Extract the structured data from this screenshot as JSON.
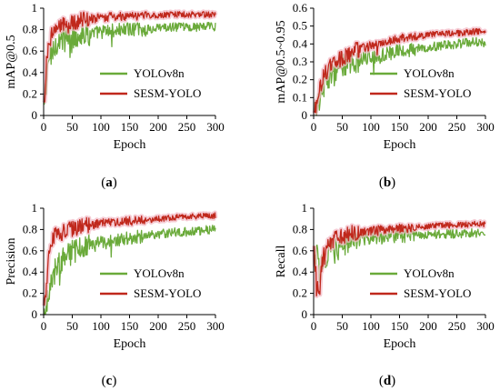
{
  "colors": {
    "yolov8n": "#6aaa3a",
    "sesm": "#c0281c",
    "sesm_glow": "#f2b8c4"
  },
  "chart_data": [
    {
      "type": "line",
      "panel": "a",
      "caption_label": "a",
      "xlabel": "Epoch",
      "ylabel": "mAP@0.5",
      "xlim": [
        0,
        300
      ],
      "ylim": [
        0,
        1
      ],
      "xticks": [
        "0",
        "50",
        "100",
        "150",
        "200",
        "250",
        "300"
      ],
      "yticks": [
        "0",
        "0.2",
        "0.4",
        "0.6",
        "0.8",
        "1"
      ],
      "legend_position": "center-right",
      "series": [
        {
          "name": "YOLOv8n",
          "x": [
            0,
            5,
            10,
            15,
            20,
            30,
            40,
            50,
            60,
            70,
            80,
            100,
            120,
            150,
            180,
            200,
            220,
            250,
            280,
            300
          ],
          "y": [
            0,
            0.35,
            0.55,
            0.6,
            0.66,
            0.7,
            0.72,
            0.73,
            0.75,
            0.77,
            0.76,
            0.78,
            0.79,
            0.8,
            0.8,
            0.81,
            0.82,
            0.82,
            0.83,
            0.83
          ]
        },
        {
          "name": "SESM-YOLO",
          "x": [
            0,
            5,
            10,
            15,
            20,
            30,
            40,
            50,
            60,
            70,
            80,
            100,
            120,
            150,
            180,
            200,
            220,
            250,
            280,
            300
          ],
          "y": [
            0,
            0.5,
            0.7,
            0.77,
            0.8,
            0.83,
            0.85,
            0.87,
            0.88,
            0.89,
            0.9,
            0.91,
            0.92,
            0.93,
            0.93,
            0.93,
            0.94,
            0.94,
            0.94,
            0.94
          ]
        }
      ]
    },
    {
      "type": "line",
      "panel": "b",
      "caption_label": "b",
      "xlabel": "Epoch",
      "ylabel": "mAP@0.5~0.95",
      "xlim": [
        0,
        300
      ],
      "ylim": [
        0,
        0.6
      ],
      "xticks": [
        "0",
        "50",
        "100",
        "150",
        "200",
        "250",
        "300"
      ],
      "yticks": [
        "0",
        "0.1",
        "0.2",
        "0.3",
        "0.4",
        "0.5",
        "0.6"
      ],
      "legend_position": "center-right",
      "series": [
        {
          "name": "YOLOv8n",
          "x": [
            0,
            5,
            10,
            15,
            20,
            30,
            40,
            50,
            60,
            70,
            80,
            100,
            120,
            150,
            180,
            200,
            220,
            250,
            280,
            300
          ],
          "y": [
            0,
            0.05,
            0.1,
            0.15,
            0.18,
            0.22,
            0.25,
            0.27,
            0.29,
            0.3,
            0.31,
            0.33,
            0.34,
            0.36,
            0.37,
            0.38,
            0.39,
            0.4,
            0.41,
            0.41
          ]
        },
        {
          "name": "SESM-YOLO",
          "x": [
            0,
            5,
            10,
            15,
            20,
            30,
            40,
            50,
            60,
            70,
            80,
            100,
            120,
            150,
            180,
            200,
            220,
            250,
            280,
            300
          ],
          "y": [
            0,
            0.07,
            0.15,
            0.2,
            0.24,
            0.28,
            0.3,
            0.32,
            0.34,
            0.36,
            0.37,
            0.39,
            0.41,
            0.43,
            0.44,
            0.45,
            0.46,
            0.46,
            0.47,
            0.47
          ]
        }
      ]
    },
    {
      "type": "line",
      "panel": "c",
      "caption_label": "c",
      "xlabel": "Epoch",
      "ylabel": "Precision",
      "xlim": [
        0,
        300
      ],
      "ylim": [
        0,
        1
      ],
      "xticks": [
        "0",
        "50",
        "100",
        "150",
        "200",
        "250",
        "300"
      ],
      "yticks": [
        "0",
        "0.2",
        "0.4",
        "0.6",
        "0.8",
        "1"
      ],
      "legend_position": "center-right",
      "series": [
        {
          "name": "YOLOv8n",
          "x": [
            0,
            5,
            10,
            15,
            20,
            30,
            40,
            50,
            60,
            70,
            80,
            100,
            120,
            150,
            180,
            200,
            220,
            250,
            280,
            300
          ],
          "y": [
            0,
            0.1,
            0.25,
            0.35,
            0.42,
            0.5,
            0.55,
            0.58,
            0.6,
            0.62,
            0.64,
            0.67,
            0.7,
            0.72,
            0.74,
            0.76,
            0.77,
            0.78,
            0.79,
            0.8
          ]
        },
        {
          "name": "SESM-YOLO",
          "x": [
            0,
            5,
            10,
            15,
            20,
            30,
            40,
            50,
            60,
            70,
            80,
            100,
            120,
            150,
            180,
            200,
            220,
            250,
            280,
            300
          ],
          "y": [
            0,
            0.3,
            0.6,
            0.7,
            0.74,
            0.77,
            0.79,
            0.8,
            0.82,
            0.83,
            0.84,
            0.86,
            0.87,
            0.88,
            0.89,
            0.9,
            0.91,
            0.92,
            0.93,
            0.93
          ]
        }
      ]
    },
    {
      "type": "line",
      "panel": "d",
      "caption_label": "d",
      "xlabel": "Epoch",
      "ylabel": "Recall",
      "xlim": [
        0,
        300
      ],
      "ylim": [
        0,
        1
      ],
      "xticks": [
        "0",
        "50",
        "100",
        "150",
        "200",
        "250",
        "300"
      ],
      "yticks": [
        "0",
        "0.2",
        "0.4",
        "0.6",
        "0.8",
        "1"
      ],
      "legend_position": "center-right",
      "series": [
        {
          "name": "YOLOv8n",
          "x": [
            0,
            5,
            10,
            15,
            20,
            30,
            40,
            50,
            60,
            70,
            80,
            100,
            120,
            150,
            180,
            200,
            220,
            250,
            280,
            300
          ],
          "y": [
            0.3,
            0.6,
            0.4,
            0.5,
            0.55,
            0.6,
            0.64,
            0.67,
            0.69,
            0.7,
            0.71,
            0.72,
            0.73,
            0.74,
            0.75,
            0.75,
            0.76,
            0.76,
            0.77,
            0.77
          ]
        },
        {
          "name": "SESM-YOLO",
          "x": [
            0,
            5,
            10,
            15,
            20,
            30,
            40,
            50,
            60,
            70,
            80,
            100,
            120,
            150,
            180,
            200,
            220,
            250,
            280,
            300
          ],
          "y": [
            0.7,
            0.3,
            0.2,
            0.5,
            0.6,
            0.68,
            0.72,
            0.74,
            0.76,
            0.77,
            0.78,
            0.79,
            0.8,
            0.81,
            0.82,
            0.83,
            0.84,
            0.84,
            0.85,
            0.85
          ]
        }
      ]
    }
  ]
}
